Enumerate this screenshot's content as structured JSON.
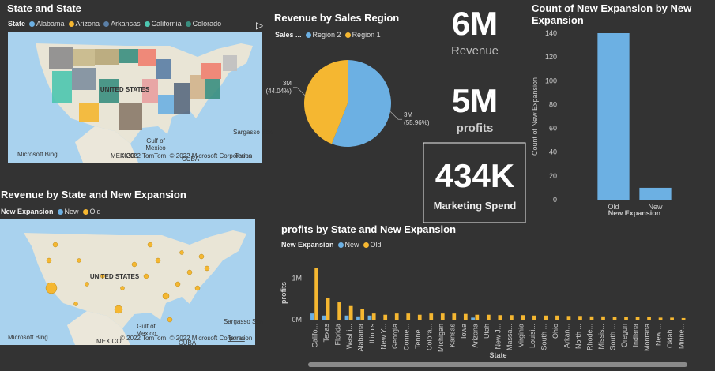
{
  "maps": [
    {
      "title": "State and State",
      "legend_title": "State",
      "legend": [
        {
          "name": "Alabama",
          "color": "#6cb0e3"
        },
        {
          "name": "Arizona",
          "color": "#f5b731"
        },
        {
          "name": "Arkansas",
          "color": "#5b7fa6"
        },
        {
          "name": "California",
          "color": "#4dc6b0"
        },
        {
          "name": "Colorado",
          "color": "#3a8f80"
        }
      ],
      "country": "UNITED STATES",
      "gulf": [
        "Gulf of",
        "Mexico"
      ],
      "mexico": "MEXICO",
      "sea": "Sargasso Sea",
      "cuba": "CUBA",
      "brand": "Microsoft Bing",
      "attribution": "© 2022 TomTom, © 2022 Microsoft Corporation",
      "terms": "Terms"
    },
    {
      "title": "Revenue by State and New Expansion",
      "legend_title": "New Expansion",
      "legend": [
        {
          "name": "New",
          "color": "#6cb0e3"
        },
        {
          "name": "Old",
          "color": "#f5b731"
        }
      ],
      "country": "UNITED STATES",
      "gulf": [
        "Gulf of",
        "Mexico"
      ],
      "mexico": "MEXICO",
      "sea": "Sargasso Sea",
      "cuba": "CUBA",
      "brand": "Microsoft Bing",
      "attribution": "© 2022 TomTom, © 2022 Microsoft Corporation",
      "terms": "Terms"
    }
  ],
  "cards": [
    {
      "value": "6M",
      "label": "Revenue"
    },
    {
      "value": "5M",
      "label": "profits"
    },
    {
      "value": "434K",
      "label": "Marketing Spend"
    }
  ],
  "chart_data": [
    {
      "type": "pie",
      "title": "Revenue by Sales Region",
      "legend_title": "Sales ...",
      "categories": [
        "Region 2",
        "Region 1"
      ],
      "values": [
        55.96,
        44.04
      ],
      "value_labels": [
        "3M (55.96%)",
        "3M (44.04%)"
      ],
      "colors": [
        "#6cb0e3",
        "#f5b731"
      ]
    },
    {
      "type": "bar",
      "title": "Count of New Expansion by New Expansion",
      "categories": [
        "Old",
        "New"
      ],
      "values": [
        140,
        10
      ],
      "color": "#6cb0e3",
      "xlabel": "New Expansion",
      "ylabel": "Count of New Expansion",
      "ylim": [
        0,
        140
      ],
      "yticks": [
        0,
        20,
        40,
        60,
        80,
        100,
        120,
        140
      ]
    },
    {
      "type": "bar",
      "title": "profits by State and New Expansion",
      "legend_title": "New Expansion",
      "categories": [
        "Califo...",
        "Texas",
        "Florida",
        "Washi...",
        "Alabama",
        "Illinois",
        "New Y...",
        "Georgia",
        "Conne...",
        "Tenne...",
        "Colora...",
        "Michigan",
        "Kansas",
        "Iowa",
        "Arizona",
        "Utah",
        "New J...",
        "Massa...",
        "Virginia",
        "Louisi...",
        "South ...",
        "Ohio",
        "Arkan...",
        "North ...",
        "Rhode...",
        "Missis...",
        "South ...",
        "Oregon",
        "Indiana",
        "Montana",
        "New ...",
        "Oklah...",
        "Minne..."
      ],
      "series": [
        {
          "name": "New",
          "color": "#6cb0e3",
          "values": [
            150000,
            100000,
            null,
            100000,
            80000,
            100000,
            null,
            null,
            null,
            null,
            null,
            null,
            null,
            null,
            50000,
            null,
            null,
            null,
            null,
            null,
            null,
            null,
            null,
            null,
            null,
            null,
            null,
            null,
            null,
            null,
            null,
            null,
            null
          ]
        },
        {
          "name": "Old",
          "color": "#f5b731",
          "values": [
            1250000,
            520000,
            420000,
            330000,
            250000,
            150000,
            120000,
            150000,
            150000,
            120000,
            150000,
            150000,
            150000,
            140000,
            120000,
            120000,
            110000,
            110000,
            110000,
            100000,
            100000,
            100000,
            90000,
            90000,
            80000,
            80000,
            70000,
            70000,
            60000,
            60000,
            50000,
            50000,
            40000
          ]
        }
      ],
      "xlabel": "State",
      "ylabel": "profits",
      "ylim": [
        0,
        1300000
      ],
      "yticks": [
        {
          "value": 0,
          "label": "0M"
        },
        {
          "value": 1000000,
          "label": "1M"
        }
      ]
    }
  ]
}
